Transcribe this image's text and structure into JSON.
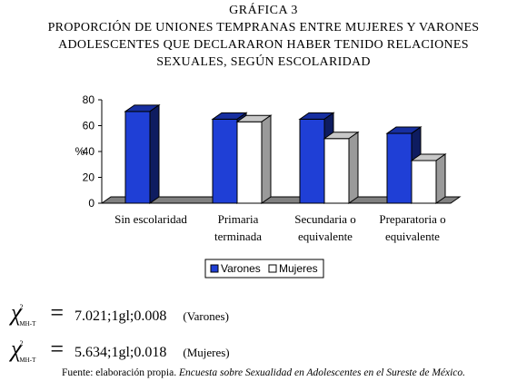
{
  "header": {
    "figure_label": "GRÁFICA 3",
    "title_line1": "PROPORCIÓN DE UNIONES TEMPRANAS ENTRE MUJERES Y VARONES",
    "title_line2": "ADOLESCENTES QUE DECLARARON HABER TENIDO RELACIONES",
    "title_line3": "SEXUALES, SEGÚN ESCOLARIDAD"
  },
  "chart_data": {
    "type": "bar",
    "categories": [
      [
        "Sin escolaridad"
      ],
      [
        "Primaria",
        "terminada"
      ],
      [
        "Secundaria o",
        "equivalente"
      ],
      [
        "Preparatoria o",
        "equivalente"
      ]
    ],
    "series": [
      {
        "name": "Varones",
        "values": [
          71,
          65,
          65,
          54
        ],
        "color": "#1f3fd6"
      },
      {
        "name": "Mujeres",
        "values": [
          0,
          63,
          50,
          33
        ],
        "color": "#ffffff"
      }
    ],
    "ylabel": "%",
    "ylim": [
      0,
      80
    ],
    "yticks": [
      "0",
      "20",
      "40",
      "60",
      "80"
    ],
    "grid": false,
    "style": "3d",
    "legend_position": "bottom"
  },
  "stats": {
    "symbol": "χ",
    "superscript": "2",
    "subscript": "MH-T",
    "equals": "=",
    "row1_value": "7.021;1gl;0.008",
    "row1_group": "(Varones)",
    "row2_value": "5.634;1gl;0.018",
    "row2_group": "(Mujeres)"
  },
  "source": {
    "prefix": "Fuente: elaboración propia.",
    "italic": "Encuesta sobre Sexualidad en Adolescentes en el Sureste de México."
  }
}
